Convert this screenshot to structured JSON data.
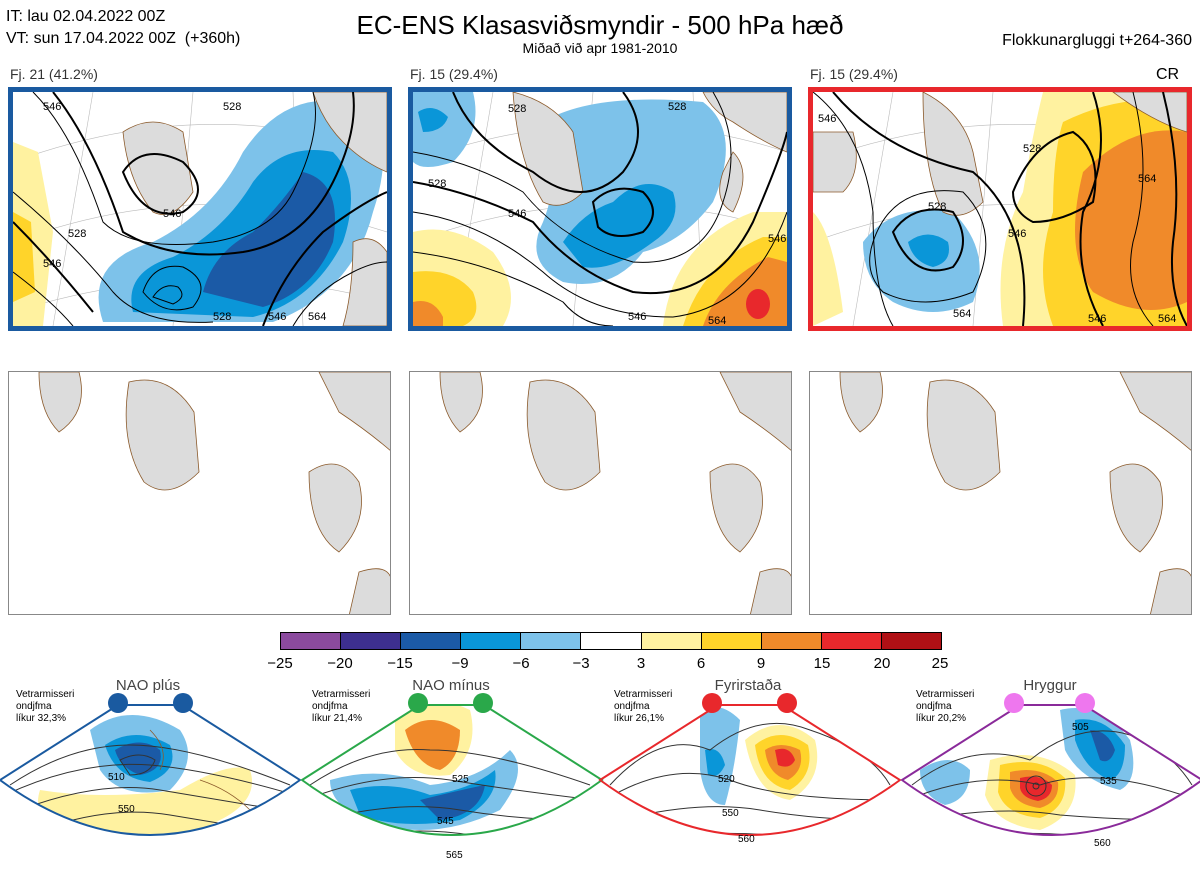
{
  "header": {
    "it_line": "IT: lau 02.04.2022 00Z",
    "vt_line": "VT: sun 17.04.2022 00Z  (+360h)",
    "title": "EC-ENS Klasasviðsmyndir - 500 hPa hæð",
    "subtitle": "Miðað við apr 1981-2010",
    "window": "Flokkunargluggi t+264-360"
  },
  "clusters": [
    {
      "label": "Fj. 21 (41.2%)",
      "frame_color": "#1a5aa0",
      "extra": "",
      "contour_labels": [
        "546",
        "528",
        "546",
        "528",
        "546",
        "528",
        "564",
        "546"
      ]
    },
    {
      "label": "Fj. 15 (29.4%)",
      "frame_color": "#1a5aa0",
      "extra": "",
      "contour_labels": [
        "528",
        "528",
        "546",
        "546",
        "546",
        "564",
        "528"
      ]
    },
    {
      "label": "Fj. 15 (29.4%)",
      "frame_color": "#e8282c",
      "extra": "CR",
      "contour_labels": [
        "528",
        "528",
        "546",
        "546",
        "564",
        "564",
        "564",
        "546"
      ]
    }
  ],
  "colorbar": {
    "ticks": [
      "−25",
      "−20",
      "−15",
      "−9",
      "−6",
      "−3",
      "3",
      "6",
      "9",
      "15",
      "20",
      "25"
    ],
    "colors": [
      "#8b4a9e",
      "#3d2f8f",
      "#1b5aa6",
      "#0a96d8",
      "#7dc2ea",
      "#ffffff",
      "#fff2a0",
      "#ffd42a",
      "#f08a2a",
      "#e8282c",
      "#b01015"
    ]
  },
  "regimes": [
    {
      "title": "NAO plús",
      "note": "Vetrarmisseri\nondjfma\nlíkur 32,3%",
      "frame_color": "#1a5aa0",
      "dot_color": "#1a5aa0",
      "contour_labels": [
        "510",
        "550"
      ]
    },
    {
      "title": "NAO mínus",
      "note": "Vetrarmisseri\nondjfma\nlíkur 21,4%",
      "frame_color": "#2aa84a",
      "dot_color": "#2aa84a",
      "contour_labels": [
        "525",
        "545",
        "565"
      ]
    },
    {
      "title": "Fyrirstaða",
      "note": "Vetrarmisseri\nondjfma\nlíkur 26,1%",
      "frame_color": "#e8282c",
      "dot_color": "#e8282c",
      "contour_labels": [
        "520",
        "550",
        "560"
      ]
    },
    {
      "title": "Hryggur",
      "note": "Vetrarmisseri\nondjfma\nlíkur 20,2%",
      "frame_color": "#8a2a9a",
      "dot_color": "#ee77ee",
      "contour_labels": [
        "505",
        "535",
        "560"
      ]
    }
  ]
}
